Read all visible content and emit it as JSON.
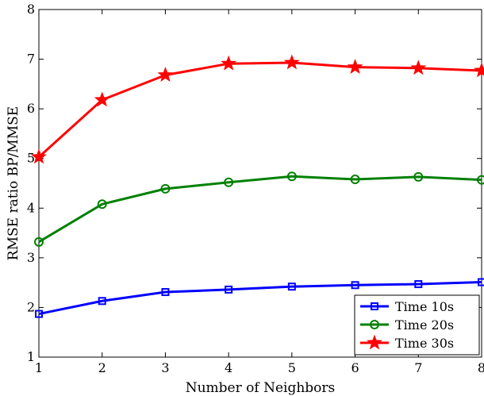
{
  "chart_data": {
    "type": "line",
    "title": "",
    "xlabel": "Number of Neighbors",
    "ylabel": "RMSE ratio BP/MMSE",
    "xlim": [
      1,
      8
    ],
    "ylim": [
      1,
      8
    ],
    "xticks": [
      1,
      2,
      3,
      4,
      5,
      6,
      7,
      8
    ],
    "yticks": [
      1,
      2,
      3,
      4,
      5,
      6,
      7,
      8
    ],
    "grid": false,
    "legend_position": "bottom-right",
    "x": [
      1,
      2,
      3,
      4,
      5,
      6,
      7,
      8
    ],
    "series": [
      {
        "name": "Time 10s",
        "color": "#0000ff",
        "marker": "square",
        "values": [
          1.87,
          2.13,
          2.31,
          2.36,
          2.42,
          2.45,
          2.47,
          2.51
        ]
      },
      {
        "name": "Time 20s",
        "color": "#008000",
        "marker": "circle",
        "values": [
          3.32,
          4.08,
          4.39,
          4.52,
          4.64,
          4.58,
          4.63,
          4.57
        ]
      },
      {
        "name": "Time 30s",
        "color": "#ff0000",
        "marker": "star",
        "values": [
          5.03,
          6.18,
          6.68,
          6.91,
          6.93,
          6.84,
          6.82,
          6.77
        ]
      }
    ]
  }
}
